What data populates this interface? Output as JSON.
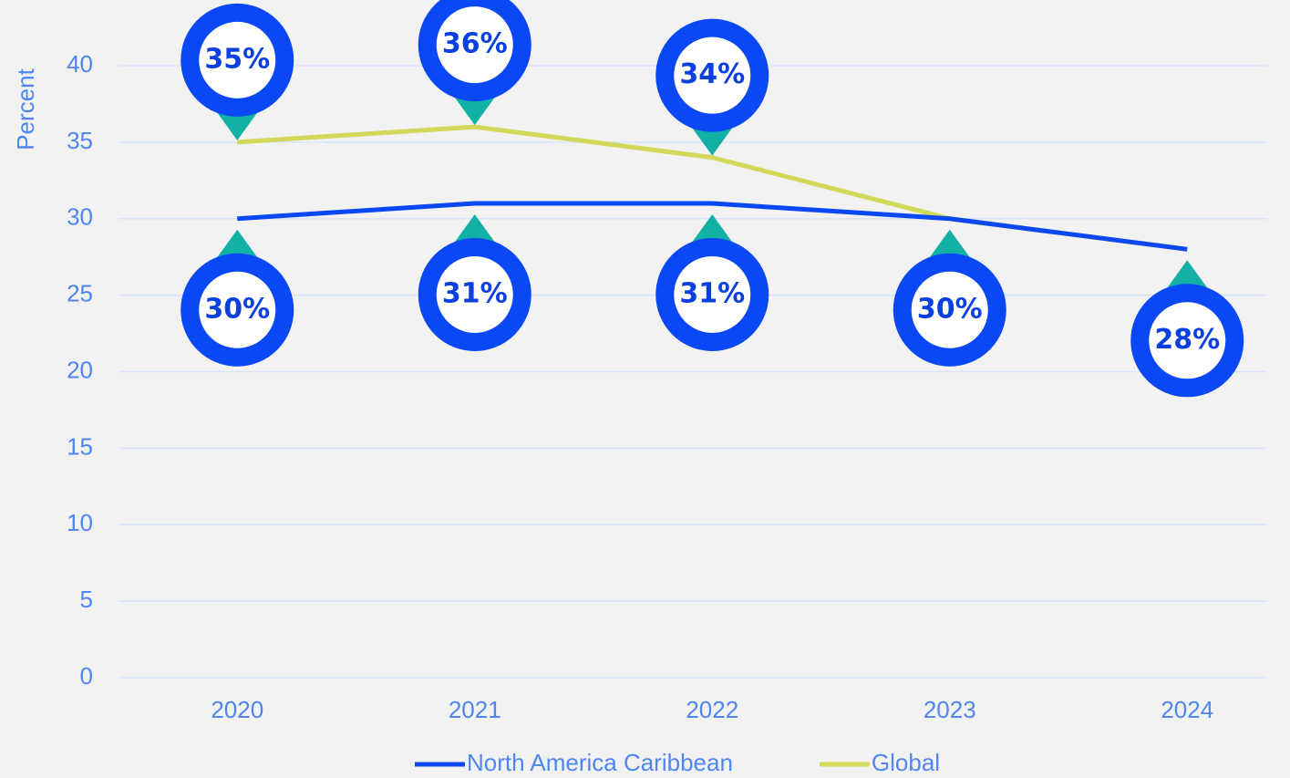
{
  "chart_data": {
    "type": "line",
    "y_label": "Percent",
    "categories": [
      "2020",
      "2021",
      "2022",
      "2023",
      "2024"
    ],
    "series": [
      {
        "name": "North America Caribbean",
        "color": "#0a47f5",
        "values": [
          30,
          31,
          31,
          30,
          28
        ],
        "value_labels": [
          "30%",
          "31%",
          "31%",
          "30%",
          "28%"
        ]
      },
      {
        "name": "Global",
        "color": "#d4d85a",
        "values": [
          35,
          36,
          34,
          30,
          28
        ],
        "value_labels": [
          "35%",
          "36%",
          "34%",
          null,
          null
        ]
      }
    ],
    "ylim": [
      0,
      40
    ],
    "yticks": [
      0,
      5,
      10,
      15,
      20,
      25,
      30,
      35,
      40
    ],
    "grid": true,
    "legend": "bottom"
  }
}
